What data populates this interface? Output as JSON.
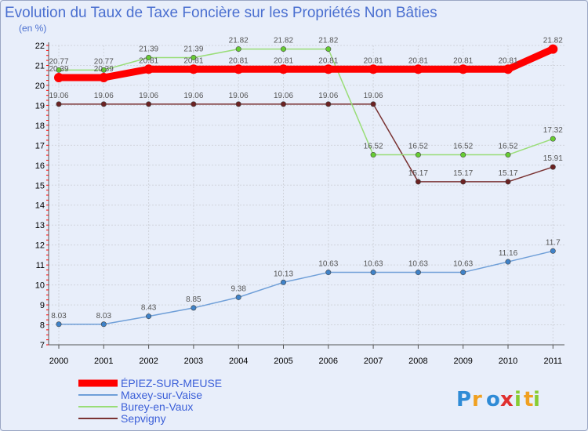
{
  "chart_data": {
    "type": "line",
    "title": "Evolution du Taux de Taxe Foncière sur les Propriétés Non Bâties",
    "unit_label": "(en %)",
    "x": [
      "2000",
      "2001",
      "2002",
      "2003",
      "2004",
      "2005",
      "2006",
      "2007",
      "2008",
      "2009",
      "2010",
      "2011"
    ],
    "ylim": [
      7,
      22
    ],
    "yticks": [
      7,
      8,
      9,
      10,
      11,
      12,
      13,
      14,
      15,
      16,
      17,
      18,
      19,
      20,
      21,
      22
    ],
    "grid": true,
    "legend_position": "bottom-left",
    "series": [
      {
        "name": "ÉPIEZ-SUR-MEUSE",
        "color": "#ff0000",
        "width": 9,
        "values": [
          20.39,
          20.39,
          20.81,
          20.81,
          20.81,
          20.81,
          20.81,
          20.81,
          20.81,
          20.81,
          20.81,
          21.82
        ],
        "labels": [
          "20.39",
          "20.39",
          "20.81",
          "20.81",
          "20.81",
          "20.81",
          "20.81",
          "20.81",
          "20.81",
          "20.81",
          "20.81",
          "21.82"
        ]
      },
      {
        "name": "Maxey-sur-Vaise",
        "color": "#6f9fd8",
        "point_color": "#3f82c8",
        "width": 1.5,
        "values": [
          8.03,
          8.03,
          8.43,
          8.85,
          9.38,
          10.13,
          10.63,
          10.63,
          10.63,
          10.63,
          11.16,
          11.7
        ],
        "labels": [
          "8.03",
          "8.03",
          "8.43",
          "8.85",
          "9.38",
          "10.13",
          "10.63",
          "10.63",
          "10.63",
          "10.63",
          "11.16",
          "11.7"
        ]
      },
      {
        "name": "Burey-en-Vaux",
        "color": "#99dd77",
        "point_color": "#66cc33",
        "width": 1.5,
        "values": [
          20.77,
          20.77,
          21.39,
          21.39,
          21.82,
          21.82,
          21.82,
          16.52,
          16.52,
          16.52,
          16.52,
          17.32
        ],
        "labels": [
          "20.77",
          "20.77",
          "21.39",
          "21.39",
          "21.82",
          "21.82",
          "21.82",
          "16.52",
          "16.52",
          "16.52",
          "16.52",
          "17.32"
        ]
      },
      {
        "name": "Sepvigny",
        "color": "#7a3333",
        "point_color": "#6b2222",
        "width": 1.5,
        "values": [
          19.06,
          19.06,
          19.06,
          19.06,
          19.06,
          19.06,
          19.06,
          19.06,
          15.17,
          15.17,
          15.17,
          15.91
        ],
        "labels": [
          "19.06",
          "19.06",
          "19.06",
          "19.06",
          "19.06",
          "19.06",
          "19.06",
          "19.06",
          "15.17",
          "15.17",
          "15.17",
          "15.91"
        ]
      }
    ]
  },
  "logo": {
    "letters": [
      "P",
      "r",
      "o",
      "x",
      "i",
      "t",
      "i"
    ],
    "colors": [
      "#2f8bd6",
      "#f0a020",
      "#2f8bd6",
      "#e03030",
      "#88cc33",
      "#f0a020",
      "#88cc33"
    ]
  }
}
